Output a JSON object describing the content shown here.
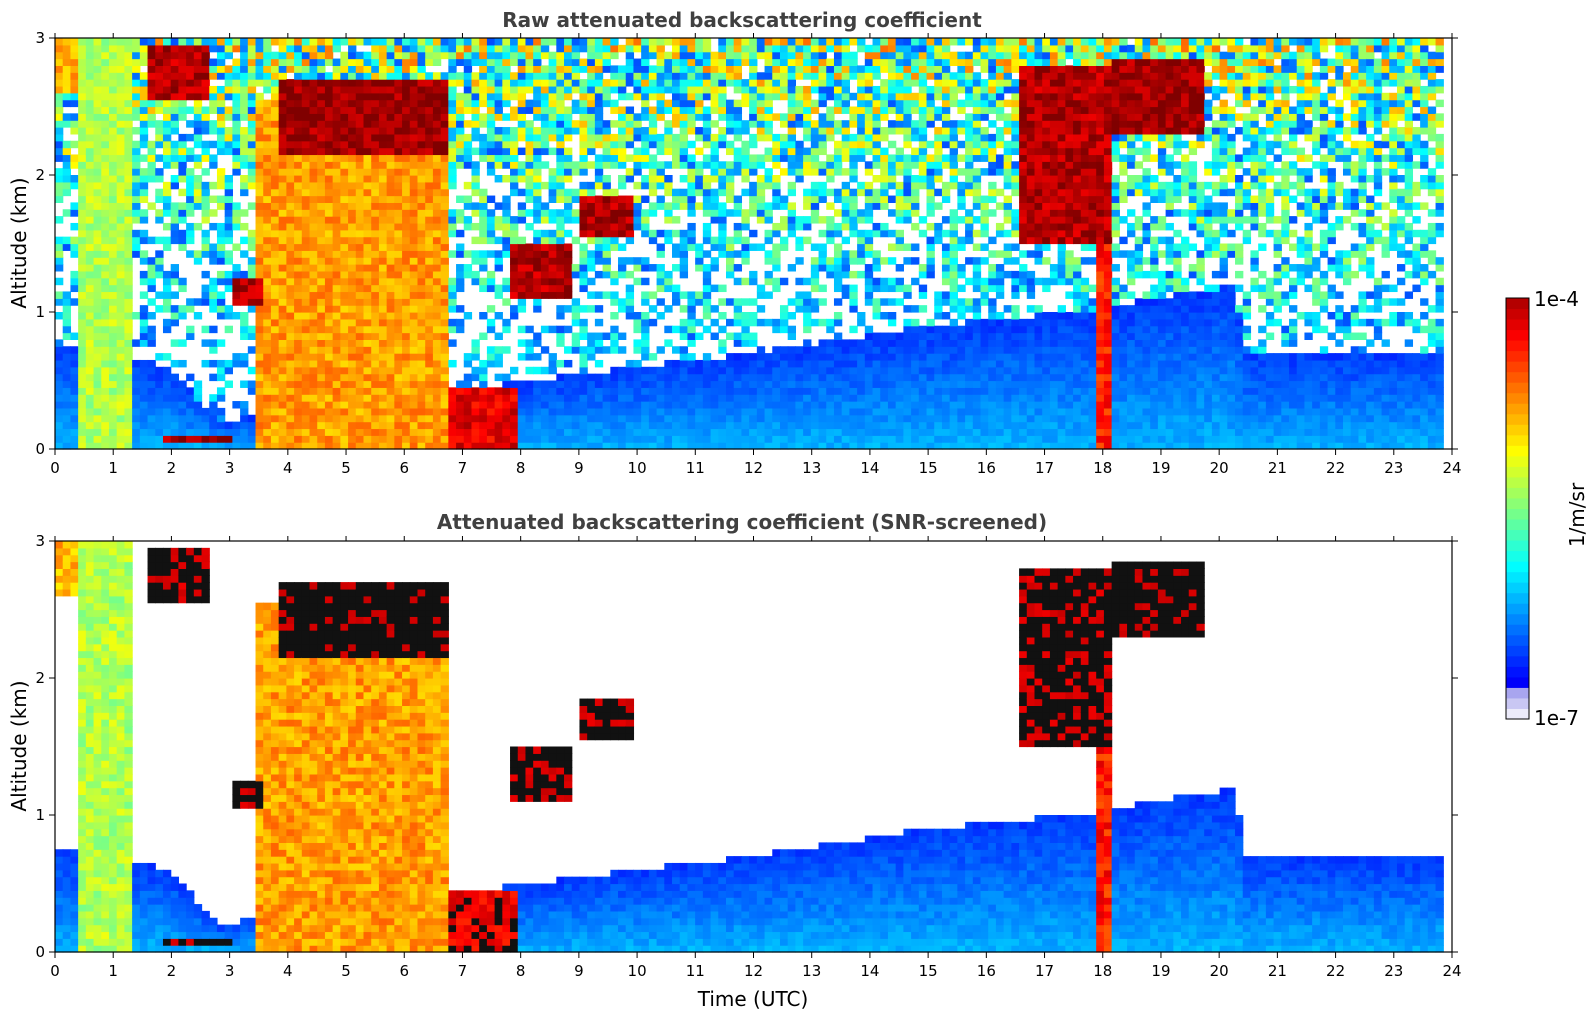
{
  "chart_data": [
    {
      "type": "heatmap",
      "title": "Raw attenuated backscattering coefficient",
      "xlabel": "",
      "ylabel": "Altitude (km)",
      "xlim": [
        0,
        24
      ],
      "ylim": [
        0,
        3
      ],
      "xticks": [
        "0",
        "1",
        "2",
        "3",
        "4",
        "5",
        "6",
        "7",
        "8",
        "9",
        "10",
        "11",
        "12",
        "13",
        "14",
        "15",
        "16",
        "17",
        "18",
        "19",
        "20",
        "21",
        "22",
        "23",
        "24"
      ],
      "yticks": [
        "0",
        "1",
        "2",
        "3"
      ],
      "data_end_time": 23.85,
      "cloud_layers": [
        {
          "t0": 0.0,
          "t1": 0.45,
          "base": 2.6,
          "top": 3.0,
          "level": 0.7
        },
        {
          "t0": 0.45,
          "t1": 1.35,
          "base": 0.0,
          "top": 3.0,
          "level": 0.55
        },
        {
          "t0": 1.65,
          "t1": 2.6,
          "base": 2.55,
          "top": 2.95,
          "level": 0.95
        },
        {
          "t0": 1.9,
          "t1": 3.1,
          "base": 0.03,
          "top": 0.12,
          "level": 0.97
        },
        {
          "t0": 3.1,
          "t1": 3.6,
          "base": 1.05,
          "top": 1.25,
          "level": 0.95
        },
        {
          "t0": 3.5,
          "t1": 6.8,
          "base": 0.0,
          "top": 2.55,
          "level": 0.72
        },
        {
          "t0": 3.9,
          "t1": 6.8,
          "base": 2.15,
          "top": 2.7,
          "level": 0.97
        },
        {
          "t0": 6.8,
          "t1": 8.0,
          "base": 0.0,
          "top": 0.45,
          "level": 0.9
        },
        {
          "t0": 7.8,
          "t1": 8.9,
          "base": 1.1,
          "top": 1.5,
          "level": 0.95
        },
        {
          "t0": 9.0,
          "t1": 10.0,
          "base": 1.55,
          "top": 1.85,
          "level": 0.95
        },
        {
          "t0": 16.6,
          "t1": 18.1,
          "base": 1.5,
          "top": 2.8,
          "level": 0.95
        },
        {
          "t0": 18.1,
          "t1": 19.8,
          "base": 2.3,
          "top": 2.85,
          "level": 0.97
        },
        {
          "t0": 17.9,
          "t1": 18.1,
          "base": 0.0,
          "top": 2.0,
          "level": 0.85
        }
      ]
    },
    {
      "type": "heatmap",
      "title": "Attenuated backscattering coefficient (SNR-screened)",
      "xlabel": "Time (UTC)",
      "ylabel": "Altitude (km)",
      "xlim": [
        0,
        24
      ],
      "ylim": [
        0,
        3
      ],
      "xticks": [
        "0",
        "1",
        "2",
        "3",
        "4",
        "5",
        "6",
        "7",
        "8",
        "9",
        "10",
        "11",
        "12",
        "13",
        "14",
        "15",
        "16",
        "17",
        "18",
        "19",
        "20",
        "21",
        "22",
        "23",
        "24"
      ],
      "yticks": [
        "0",
        "1",
        "2",
        "3"
      ],
      "data_end_time": 23.85,
      "boundary_layer_top": [
        {
          "t": 0.0,
          "h": 0.75
        },
        {
          "t": 2.0,
          "h": 0.6
        },
        {
          "t": 2.8,
          "h": 0.2
        },
        {
          "t": 9.0,
          "h": 0.55
        },
        {
          "t": 12.0,
          "h": 0.7
        },
        {
          "t": 15.0,
          "h": 0.9
        },
        {
          "t": 17.5,
          "h": 1.0
        },
        {
          "t": 20.3,
          "h": 1.2
        },
        {
          "t": 20.4,
          "h": 0.7
        },
        {
          "t": 23.85,
          "h": 0.7
        }
      ]
    }
  ],
  "colorbar": {
    "label": "1/m/sr",
    "max_label": "1e-4",
    "min_label": "1e-7",
    "scale": "log",
    "colormap": "jet",
    "steps": 40
  }
}
